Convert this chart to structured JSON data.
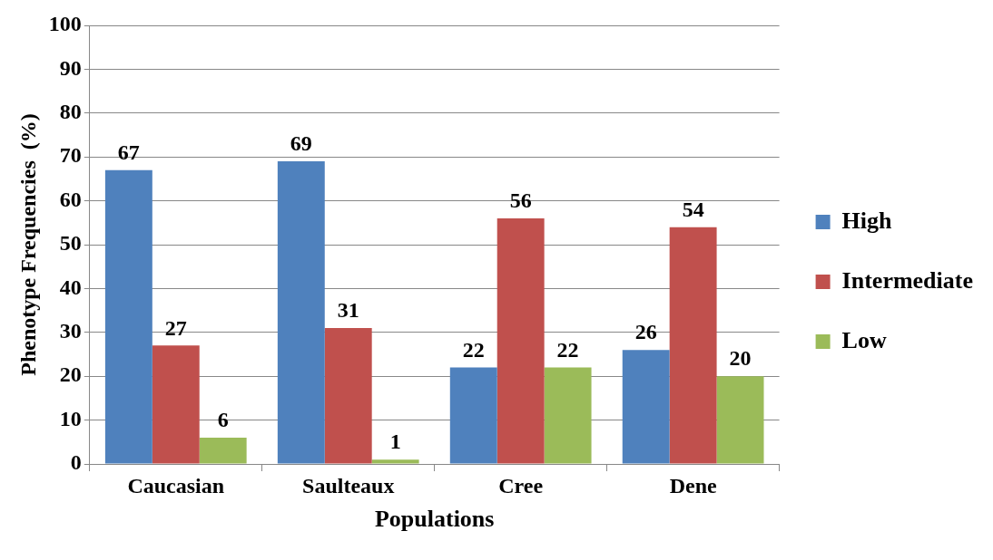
{
  "chart_data": {
    "type": "bar",
    "xlabel": "Populations",
    "ylabel": "Phenotype Frequencies  (%)",
    "categories": [
      "Caucasian",
      "Saulteaux",
      "Cree",
      "Dene"
    ],
    "series": [
      {
        "name": "High",
        "color": "#4f81bd",
        "values": [
          67,
          69,
          22,
          26
        ]
      },
      {
        "name": "Intermediate",
        "color": "#c0504d",
        "values": [
          27,
          31,
          56,
          54
        ]
      },
      {
        "name": "Low",
        "color": "#9bbb59",
        "values": [
          6,
          1,
          22,
          20
        ]
      }
    ],
    "ylim": [
      0,
      100
    ],
    "yticks": [
      0,
      10,
      20,
      30,
      40,
      50,
      60,
      70,
      80,
      90,
      100
    ],
    "grid": "y",
    "legend": "right",
    "data_labels": true
  }
}
